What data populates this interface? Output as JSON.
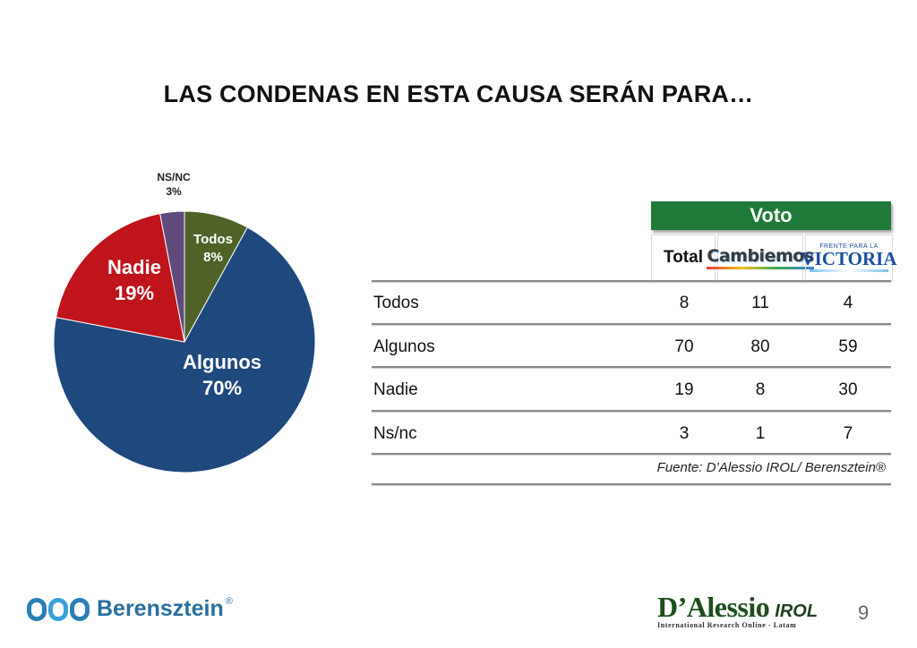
{
  "title": "LAS CONDENAS EN ESTA CAUSA SERÁN PARA…",
  "chart_data": [
    {
      "type": "pie",
      "slices": [
        {
          "label": "Todos",
          "value": 8,
          "display": "8%",
          "color": "#4f6228"
        },
        {
          "label": "Algunos",
          "value": 70,
          "display": "70%",
          "color": "#1f497d"
        },
        {
          "label": "Nadie",
          "value": 19,
          "display": "19%",
          "color": "#c0141c"
        },
        {
          "label": "NS/NC",
          "value": 3,
          "display": "3%",
          "color": "#604a7b"
        }
      ]
    },
    {
      "type": "table",
      "group_header": "Voto",
      "columns": [
        "Total",
        "Cambiemos",
        "FRENTE PARA LA VICTORIA"
      ],
      "rows": [
        {
          "label": "Todos",
          "values": [
            8,
            11,
            4
          ]
        },
        {
          "label": "Algunos",
          "values": [
            70,
            80,
            59
          ]
        },
        {
          "label": "Nadie",
          "values": [
            19,
            8,
            30
          ]
        },
        {
          "label": "Ns/nc",
          "values": [
            3,
            1,
            7
          ]
        }
      ]
    }
  ],
  "table": {
    "group_header": "Voto",
    "col_total": "Total",
    "logo_cambiemos": "Cambiemos",
    "logo_fpv_small": "FRENTE PARA LA",
    "logo_fpv_big": "VICTORIA",
    "rows": [
      {
        "label": "Todos",
        "total": "8",
        "cambiemos": "11",
        "fpv": "4"
      },
      {
        "label": "Algunos",
        "total": "70",
        "cambiemos": "80",
        "fpv": "59"
      },
      {
        "label": "Nadie",
        "total": "19",
        "cambiemos": "8",
        "fpv": "30"
      },
      {
        "label": "Ns/nc",
        "total": "3",
        "cambiemos": "1",
        "fpv": "7"
      }
    ],
    "source": "Fuente: D’Alessio IROL/ Berensztein®"
  },
  "footer": {
    "brand_left": "Berensztein",
    "brand_left_reg": "®",
    "brand_right": "D’Alessio",
    "brand_right_irol": "IROL",
    "brand_right_tagline": "International Research Online - Latam",
    "page_number": "9"
  }
}
